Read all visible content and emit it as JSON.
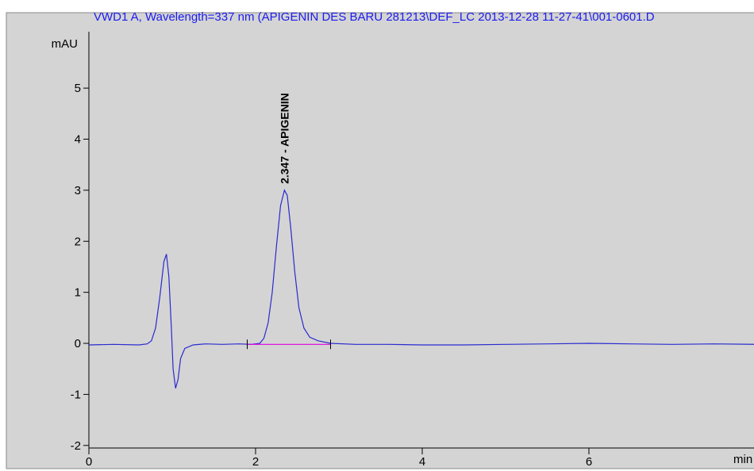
{
  "chart_data": {
    "type": "line",
    "title": "VWD1 A, Wavelength=337 nm (APIGENIN DES BARU 281213\\DEF_LC 2013-12-28 11-27-41\\001-0601.D",
    "x_label": "min",
    "y_label": "mAU",
    "xlim": [
      0,
      8
    ],
    "ylim": [
      -2.05,
      6.4
    ],
    "xticks": [
      0,
      2,
      4,
      6
    ],
    "yticks": [
      -2,
      -1,
      0,
      1,
      2,
      3,
      4,
      5
    ],
    "x": [
      0,
      0.3,
      0.6,
      0.7,
      0.75,
      0.8,
      0.85,
      0.9,
      0.93,
      0.96,
      0.99,
      1.01,
      1.04,
      1.07,
      1.1,
      1.15,
      1.25,
      1.4,
      1.6,
      1.8,
      1.95,
      2.05,
      2.1,
      2.15,
      2.2,
      2.25,
      2.3,
      2.347,
      2.38,
      2.42,
      2.47,
      2.52,
      2.58,
      2.65,
      2.75,
      2.9,
      3.2,
      3.6,
      4.0,
      4.5,
      5.0,
      5.5,
      6.0,
      6.5,
      7.0,
      7.5,
      8.0
    ],
    "series": [
      {
        "color": "#2a2ad0",
        "values": [
          -0.03,
          -0.02,
          -0.03,
          -0.01,
          0.05,
          0.3,
          0.9,
          1.6,
          1.75,
          1.3,
          0.3,
          -0.5,
          -0.88,
          -0.7,
          -0.3,
          -0.1,
          -0.03,
          -0.01,
          -0.02,
          -0.01,
          -0.02,
          0.0,
          0.1,
          0.4,
          1.0,
          1.9,
          2.7,
          3.0,
          2.9,
          2.3,
          1.4,
          0.7,
          0.3,
          0.12,
          0.05,
          0.0,
          -0.02,
          -0.02,
          -0.03,
          -0.03,
          -0.02,
          -0.01,
          0.0,
          -0.01,
          -0.02,
          -0.01,
          -0.02
        ]
      }
    ],
    "baseline": {
      "color": "#e000e0",
      "x": [
        1.9,
        2.9
      ],
      "values": [
        -0.02,
        -0.02
      ]
    },
    "annotations": [
      {
        "text": "2.347 -  APIGENIN",
        "x": 2.347,
        "y": 3.0
      }
    ]
  }
}
